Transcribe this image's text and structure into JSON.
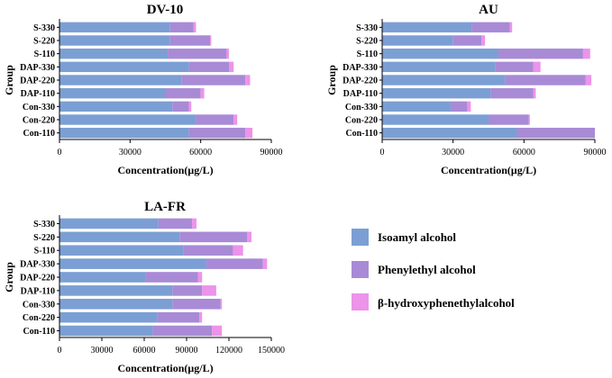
{
  "colors": {
    "isoamyl": "#7b9fd4",
    "phenylethyl": "#a98ad6",
    "hydroxy": "#ec93ea"
  },
  "legend": {
    "items": [
      {
        "label": "Isoamyl alcohol",
        "color": "#7b9fd4"
      },
      {
        "label": "Phenylethyl alcohol",
        "color": "#a98ad6"
      },
      {
        "label": "β-hydroxyphenethylalcohol",
        "color": "#ec93ea"
      }
    ]
  },
  "chart_data": [
    {
      "type": "bar",
      "orientation": "horizontal",
      "stacked": true,
      "title": "DV-10",
      "xlabel": "Concentration(μg/L)",
      "ylabel": "Group",
      "xlim": [
        0,
        90000
      ],
      "xticks": [
        0,
        30000,
        60000,
        90000
      ],
      "xtick_labels": [
        "0",
        "30000",
        "60000",
        "90000"
      ],
      "categories": [
        "S-330",
        "S-220",
        "S-110",
        "DAP-330",
        "DAP-220",
        "DAP-110",
        "Con-330",
        "Con-220",
        "Con-110"
      ],
      "series": [
        {
          "name": "Isoamyl alcohol",
          "values": [
            47000,
            47000,
            46000,
            55000,
            52000,
            45000,
            48000,
            58000,
            55000
          ]
        },
        {
          "name": "Phenylethyl alcohol",
          "values": [
            10000,
            17000,
            25000,
            17000,
            27000,
            15000,
            7000,
            16000,
            24000
          ]
        },
        {
          "name": "β-hydroxyphenethylalcohol",
          "values": [
            1000,
            500,
            1000,
            2000,
            2000,
            1500,
            1000,
            1500,
            3000
          ]
        }
      ]
    },
    {
      "type": "bar",
      "orientation": "horizontal",
      "stacked": true,
      "title": "AU",
      "xlabel": "Concentration(μg/L)",
      "ylabel": "Group",
      "xlim": [
        0,
        90000
      ],
      "xticks": [
        0,
        30000,
        60000,
        90000
      ],
      "xtick_labels": [
        "0",
        "30000",
        "60000",
        "90000"
      ],
      "categories": [
        "S-330",
        "S-220",
        "S-110",
        "DAP-330",
        "DAP-220",
        "DAP-110",
        "Con-330",
        "Con-220",
        "Con-110"
      ],
      "series": [
        {
          "name": "Isoamyl alcohol",
          "values": [
            38000,
            30000,
            49000,
            48000,
            52000,
            46000,
            29000,
            45000,
            57000
          ]
        },
        {
          "name": "Phenylethyl alcohol",
          "values": [
            16000,
            12000,
            36000,
            16000,
            34000,
            18000,
            7000,
            17000,
            33000
          ]
        },
        {
          "name": "β-hydroxyphenethylalcohol",
          "values": [
            1000,
            1500,
            3000,
            3000,
            2500,
            1000,
            1500,
            500,
            0
          ]
        }
      ]
    },
    {
      "type": "bar",
      "orientation": "horizontal",
      "stacked": true,
      "title": "LA-FR",
      "xlabel": "Concentration(μg/L)",
      "ylabel": "Group",
      "xlim": [
        0,
        150000
      ],
      "xticks": [
        0,
        30000,
        60000,
        90000,
        120000,
        150000
      ],
      "xtick_labels": [
        "0",
        "30000",
        "60000",
        "90000",
        "120000",
        "150000"
      ],
      "categories": [
        "S-330",
        "S-220",
        "S-110",
        "DAP-330",
        "DAP-220",
        "DAP-110",
        "Con-330",
        "Con-220",
        "Con-110"
      ],
      "series": [
        {
          "name": "Isoamyl alcohol",
          "values": [
            70000,
            85000,
            88000,
            104000,
            61000,
            80000,
            80000,
            69000,
            66000
          ]
        },
        {
          "name": "Phenylethyl alcohol",
          "values": [
            24000,
            48000,
            35000,
            40000,
            37000,
            21000,
            34000,
            30000,
            42000
          ]
        },
        {
          "name": "β-hydroxyphenethylalcohol",
          "values": [
            3000,
            3000,
            7000,
            3000,
            3000,
            10000,
            1000,
            2000,
            7000
          ]
        }
      ]
    }
  ]
}
